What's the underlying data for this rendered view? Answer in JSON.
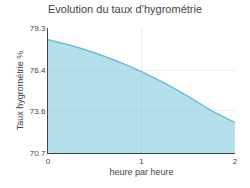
{
  "chart_data": {
    "type": "area",
    "title": "Evolution du taux d’hygrométrie",
    "xlabel": "heure par heure",
    "ylabel": "Taux hygrométrie %",
    "x": [
      0,
      0.25,
      0.5,
      0.75,
      1.0,
      1.25,
      1.5,
      1.75,
      2.0
    ],
    "values": [
      78.5,
      78.1,
      77.6,
      77.0,
      76.3,
      75.5,
      74.6,
      73.6,
      72.8
    ],
    "color": "#6bbfd8",
    "xlim": [
      0,
      2
    ],
    "ylim": [
      70.7,
      79.3
    ],
    "xticks": [
      0,
      1,
      2
    ],
    "yticks": [
      70.7,
      73.6,
      76.4,
      79.3
    ],
    "grid": true
  }
}
